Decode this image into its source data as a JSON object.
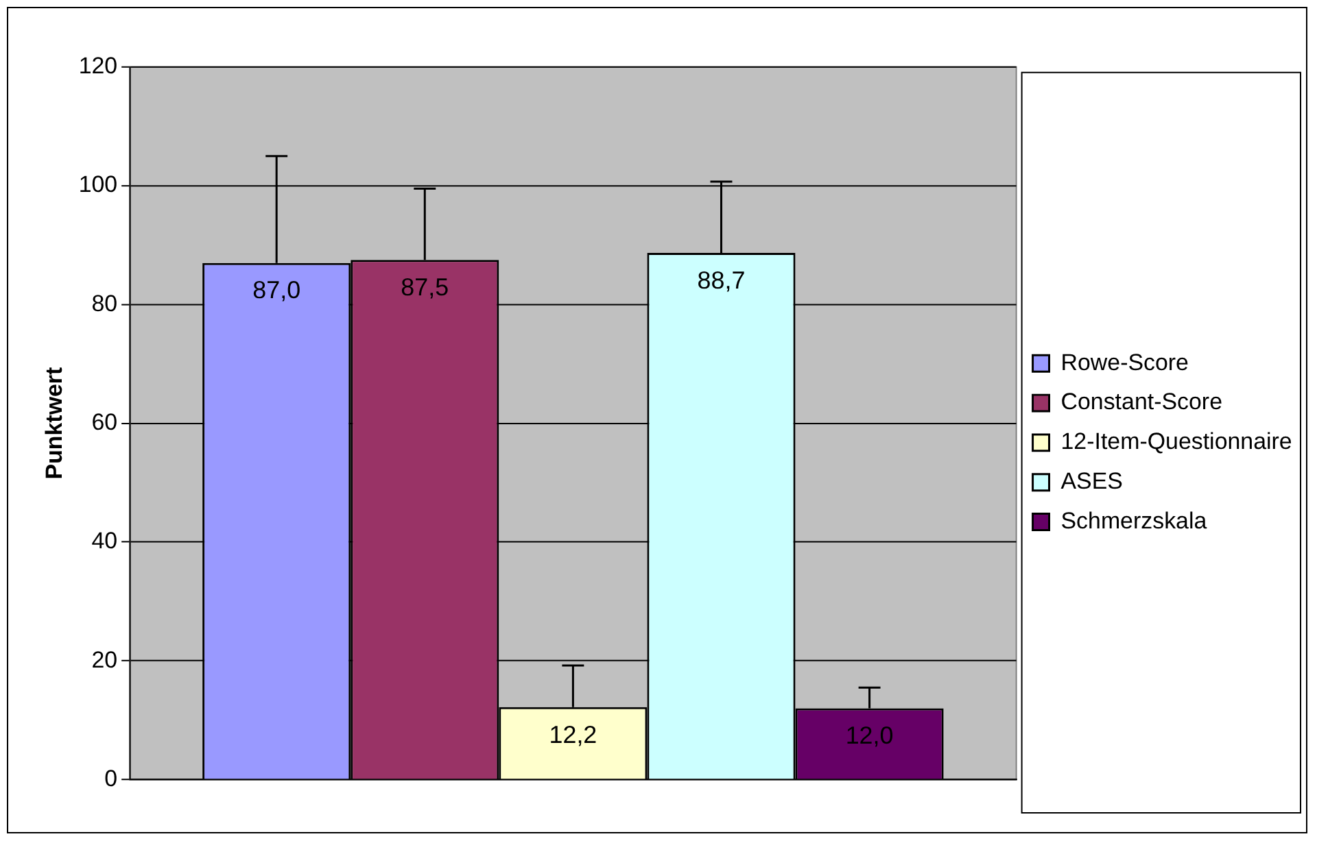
{
  "chart_data": {
    "type": "bar",
    "ylabel": "Punktwert",
    "categories": [
      null
    ],
    "series": [
      {
        "name": "Rowe-Score",
        "color": "#9999ff",
        "values": [
          87.0
        ],
        "errors": [
          18
        ],
        "value_labels": [
          "87,0"
        ]
      },
      {
        "name": "Constant-Score",
        "color": "#993366",
        "values": [
          87.5
        ],
        "errors": [
          12
        ],
        "value_labels": [
          "87,5"
        ]
      },
      {
        "name": "12-Item-Questionnaire",
        "color": "#ffffcc",
        "values": [
          12.2
        ],
        "errors": [
          7
        ],
        "value_labels": [
          "12,2"
        ]
      },
      {
        "name": "ASES",
        "color": "#ccffff",
        "values": [
          88.7
        ],
        "errors": [
          12
        ],
        "value_labels": [
          "88,7"
        ]
      },
      {
        "name": "Schmerzskala",
        "color": "#660066",
        "values": [
          12.0
        ],
        "errors": [
          3.5
        ],
        "value_labels": [
          "12,0"
        ]
      }
    ],
    "ylim": [
      0,
      120
    ],
    "yticks": [
      0,
      20,
      40,
      60,
      80,
      100,
      120
    ],
    "grid": "y",
    "legend": "right"
  }
}
